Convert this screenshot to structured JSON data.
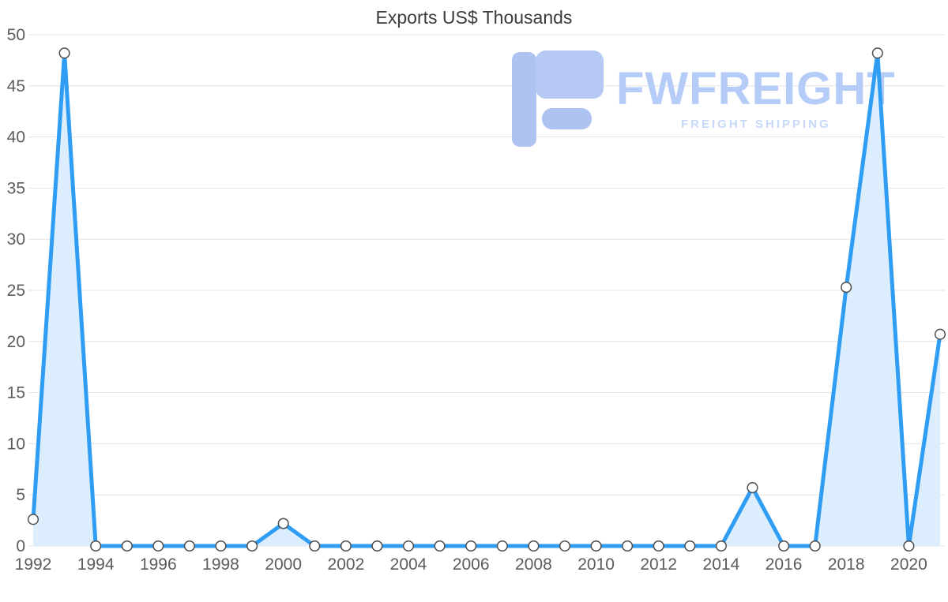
{
  "watermark": {
    "brand": "FWFREIGHT",
    "tagline": "FREIGHT SHIPPING"
  },
  "chart_data": {
    "type": "area",
    "title": "Exports US$ Thousands",
    "series_name": "Exports US$ Thousands",
    "x": [
      1992,
      1993,
      1994,
      1995,
      1996,
      1997,
      1998,
      1999,
      2000,
      2001,
      2002,
      2003,
      2004,
      2005,
      2006,
      2007,
      2008,
      2009,
      2010,
      2011,
      2012,
      2013,
      2014,
      2015,
      2016,
      2017,
      2018,
      2019,
      2020,
      2021
    ],
    "values": [
      2.6,
      48.2,
      0,
      0,
      0,
      0,
      0,
      0,
      2.2,
      0,
      0,
      0,
      0,
      0,
      0,
      0,
      0,
      0,
      0,
      0,
      0,
      0,
      0,
      5.7,
      0,
      0,
      25.3,
      48.2,
      0,
      20.7
    ],
    "x_tick_labels": [
      "1992",
      "1994",
      "1996",
      "1998",
      "2000",
      "2002",
      "2004",
      "2006",
      "2008",
      "2010",
      "2012",
      "2014",
      "2016",
      "2018",
      "2020"
    ],
    "y_ticks": [
      0,
      5,
      10,
      15,
      20,
      25,
      30,
      35,
      40,
      45,
      50
    ],
    "ylim": [
      0,
      50
    ],
    "xlabel": "",
    "ylabel": "",
    "grid": "horizontal",
    "legend": "none",
    "colors": {
      "line": "#2e9df3",
      "area": "#dcedfd",
      "marker_fill": "#ffffff",
      "marker_stroke": "#4d4d4d",
      "grid": "#e3e3e3",
      "axis_text": "#5c5c5c",
      "title_text": "#3b3b3b",
      "watermark": "#b4ccf7"
    }
  }
}
